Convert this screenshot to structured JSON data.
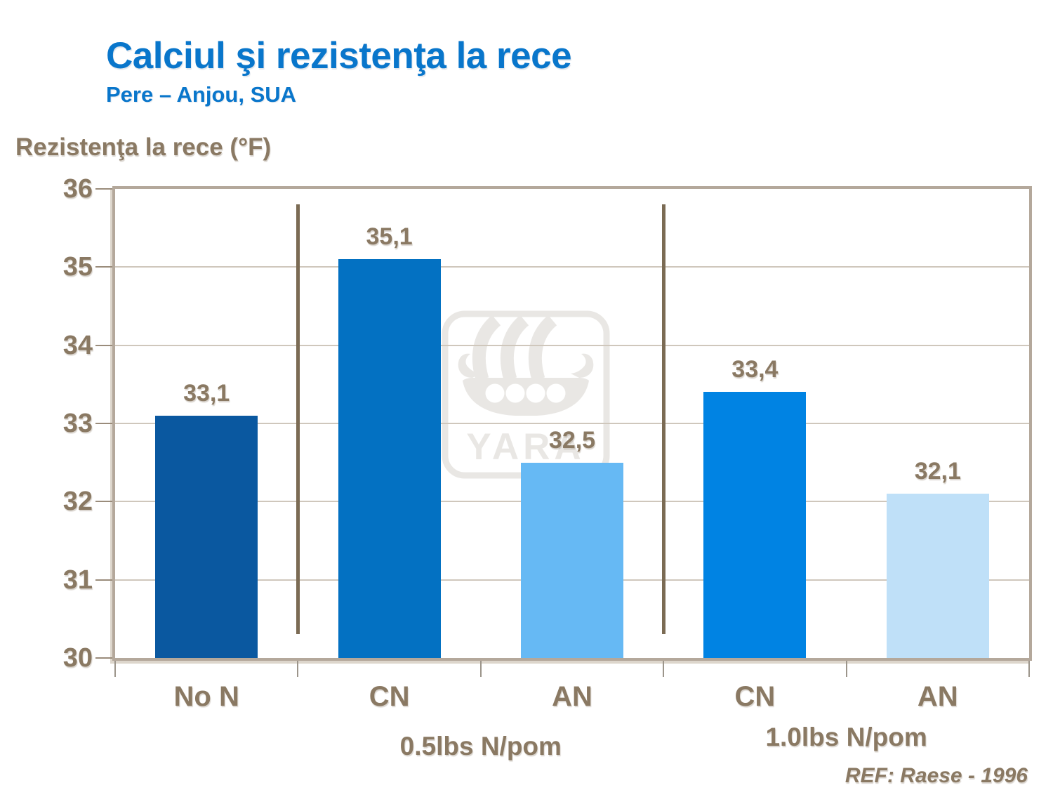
{
  "header": {
    "title": "Calciul şi rezistenţa la rece",
    "subtitle": "Pere – Anjou, SUA"
  },
  "watermark": {
    "text": "YARA"
  },
  "footer": {
    "ref": "REF: Raese - 1996"
  },
  "colors": {
    "title_blue": "#0976cb",
    "label_brown": "#8a7963",
    "divider_brown": "#7b6b54",
    "plot_border_tan": "#b4a89b",
    "gridline": "#cfc7bc",
    "watermark_gray": "#e9e7e4",
    "background": "#ffffff"
  },
  "chart_data": {
    "type": "bar",
    "title": "Calciul şi rezistenţa la rece",
    "subtitle": "Pere – Anjou, SUA",
    "ylabel": "Rezistenţa la rece (°F)",
    "xlabel": "",
    "ylim": [
      30,
      36
    ],
    "yticks": [
      30,
      31,
      32,
      33,
      34,
      35,
      36
    ],
    "grid": true,
    "legend": null,
    "categories": [
      "No N",
      "CN",
      "AN",
      "CN",
      "AN"
    ],
    "values": [
      33.1,
      35.1,
      32.5,
      33.4,
      32.1
    ],
    "value_labels": [
      "33,1",
      "35,1",
      "32,5",
      "33,4",
      "32,1"
    ],
    "bar_colors": [
      "#0a58a0",
      "#0371c2",
      "#66b9f4",
      "#0083e3",
      "#bfe0f8"
    ],
    "groups": [
      {
        "label": "0.5lbs N/pom",
        "categories": [
          1,
          2
        ]
      },
      {
        "label": "1.0lbs N/pom",
        "categories": [
          3,
          4
        ]
      }
    ],
    "dividers_after_category": [
      0,
      2
    ],
    "annotation": "REF: Raese - 1996"
  }
}
